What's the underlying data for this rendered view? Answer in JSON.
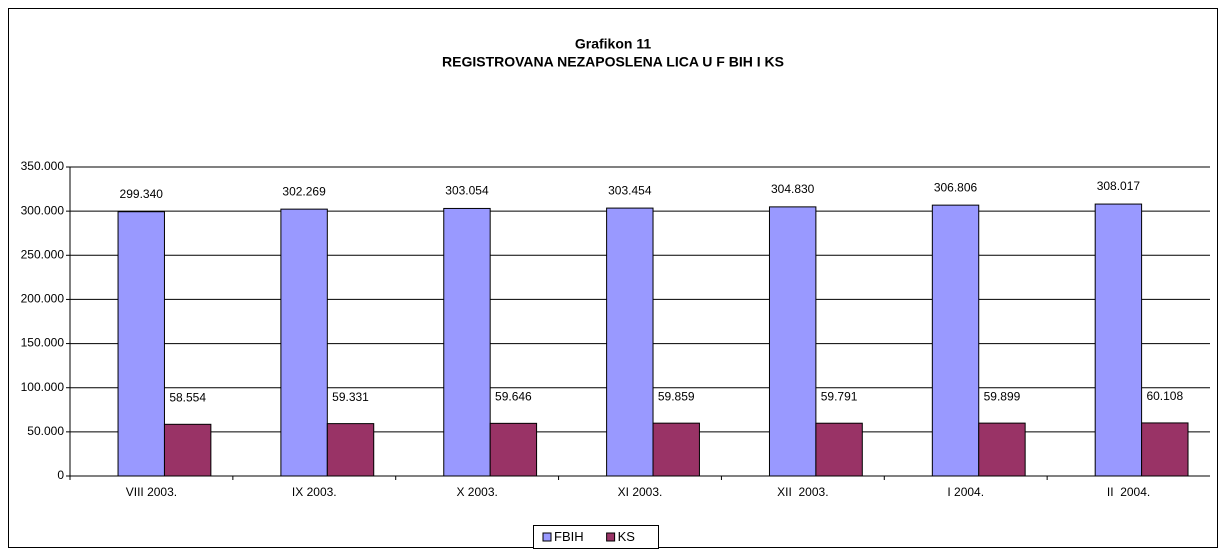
{
  "chart_data": {
    "type": "bar",
    "title": "Grafikon 11",
    "subtitle": "REGISTROVANA NEZAPOSLENA LICA U F BIH I KS",
    "categories": [
      "VIII 2003.",
      "IX 2003.",
      "X 2003.",
      "XI 2003.",
      "XII  2003.",
      "I 2004.",
      "II  2004."
    ],
    "series": [
      {
        "name": "FBIH",
        "color": "#9999ff",
        "values": [
          299340,
          302269,
          303054,
          303454,
          304830,
          306806,
          308017
        ],
        "value_labels": [
          "299.340",
          "302.269",
          "303.054",
          "303.454",
          "304.830",
          "306.806",
          "308.017"
        ]
      },
      {
        "name": "KS",
        "color": "#993366",
        "values": [
          58554,
          59331,
          59646,
          59859,
          59791,
          59899,
          60108
        ],
        "value_labels": [
          "58.554",
          "59.331",
          "59.646",
          "59.859",
          "59.791",
          "59.899",
          "60.108"
        ]
      }
    ],
    "ylim": [
      0,
      350000
    ],
    "yticks": [
      0,
      {
        "value": 50000,
        "label": "50.000"
      },
      {
        "value": 100000,
        "label": "100.000"
      },
      {
        "value": 150000,
        "label": "150.000"
      },
      {
        "value": 200000,
        "label": "200.000"
      },
      {
        "value": 250000,
        "label": "250.000"
      },
      {
        "value": 300000,
        "label": "300.000"
      },
      {
        "value": 350000,
        "label": "350.000"
      }
    ],
    "grid": true,
    "legend": "bottom"
  }
}
